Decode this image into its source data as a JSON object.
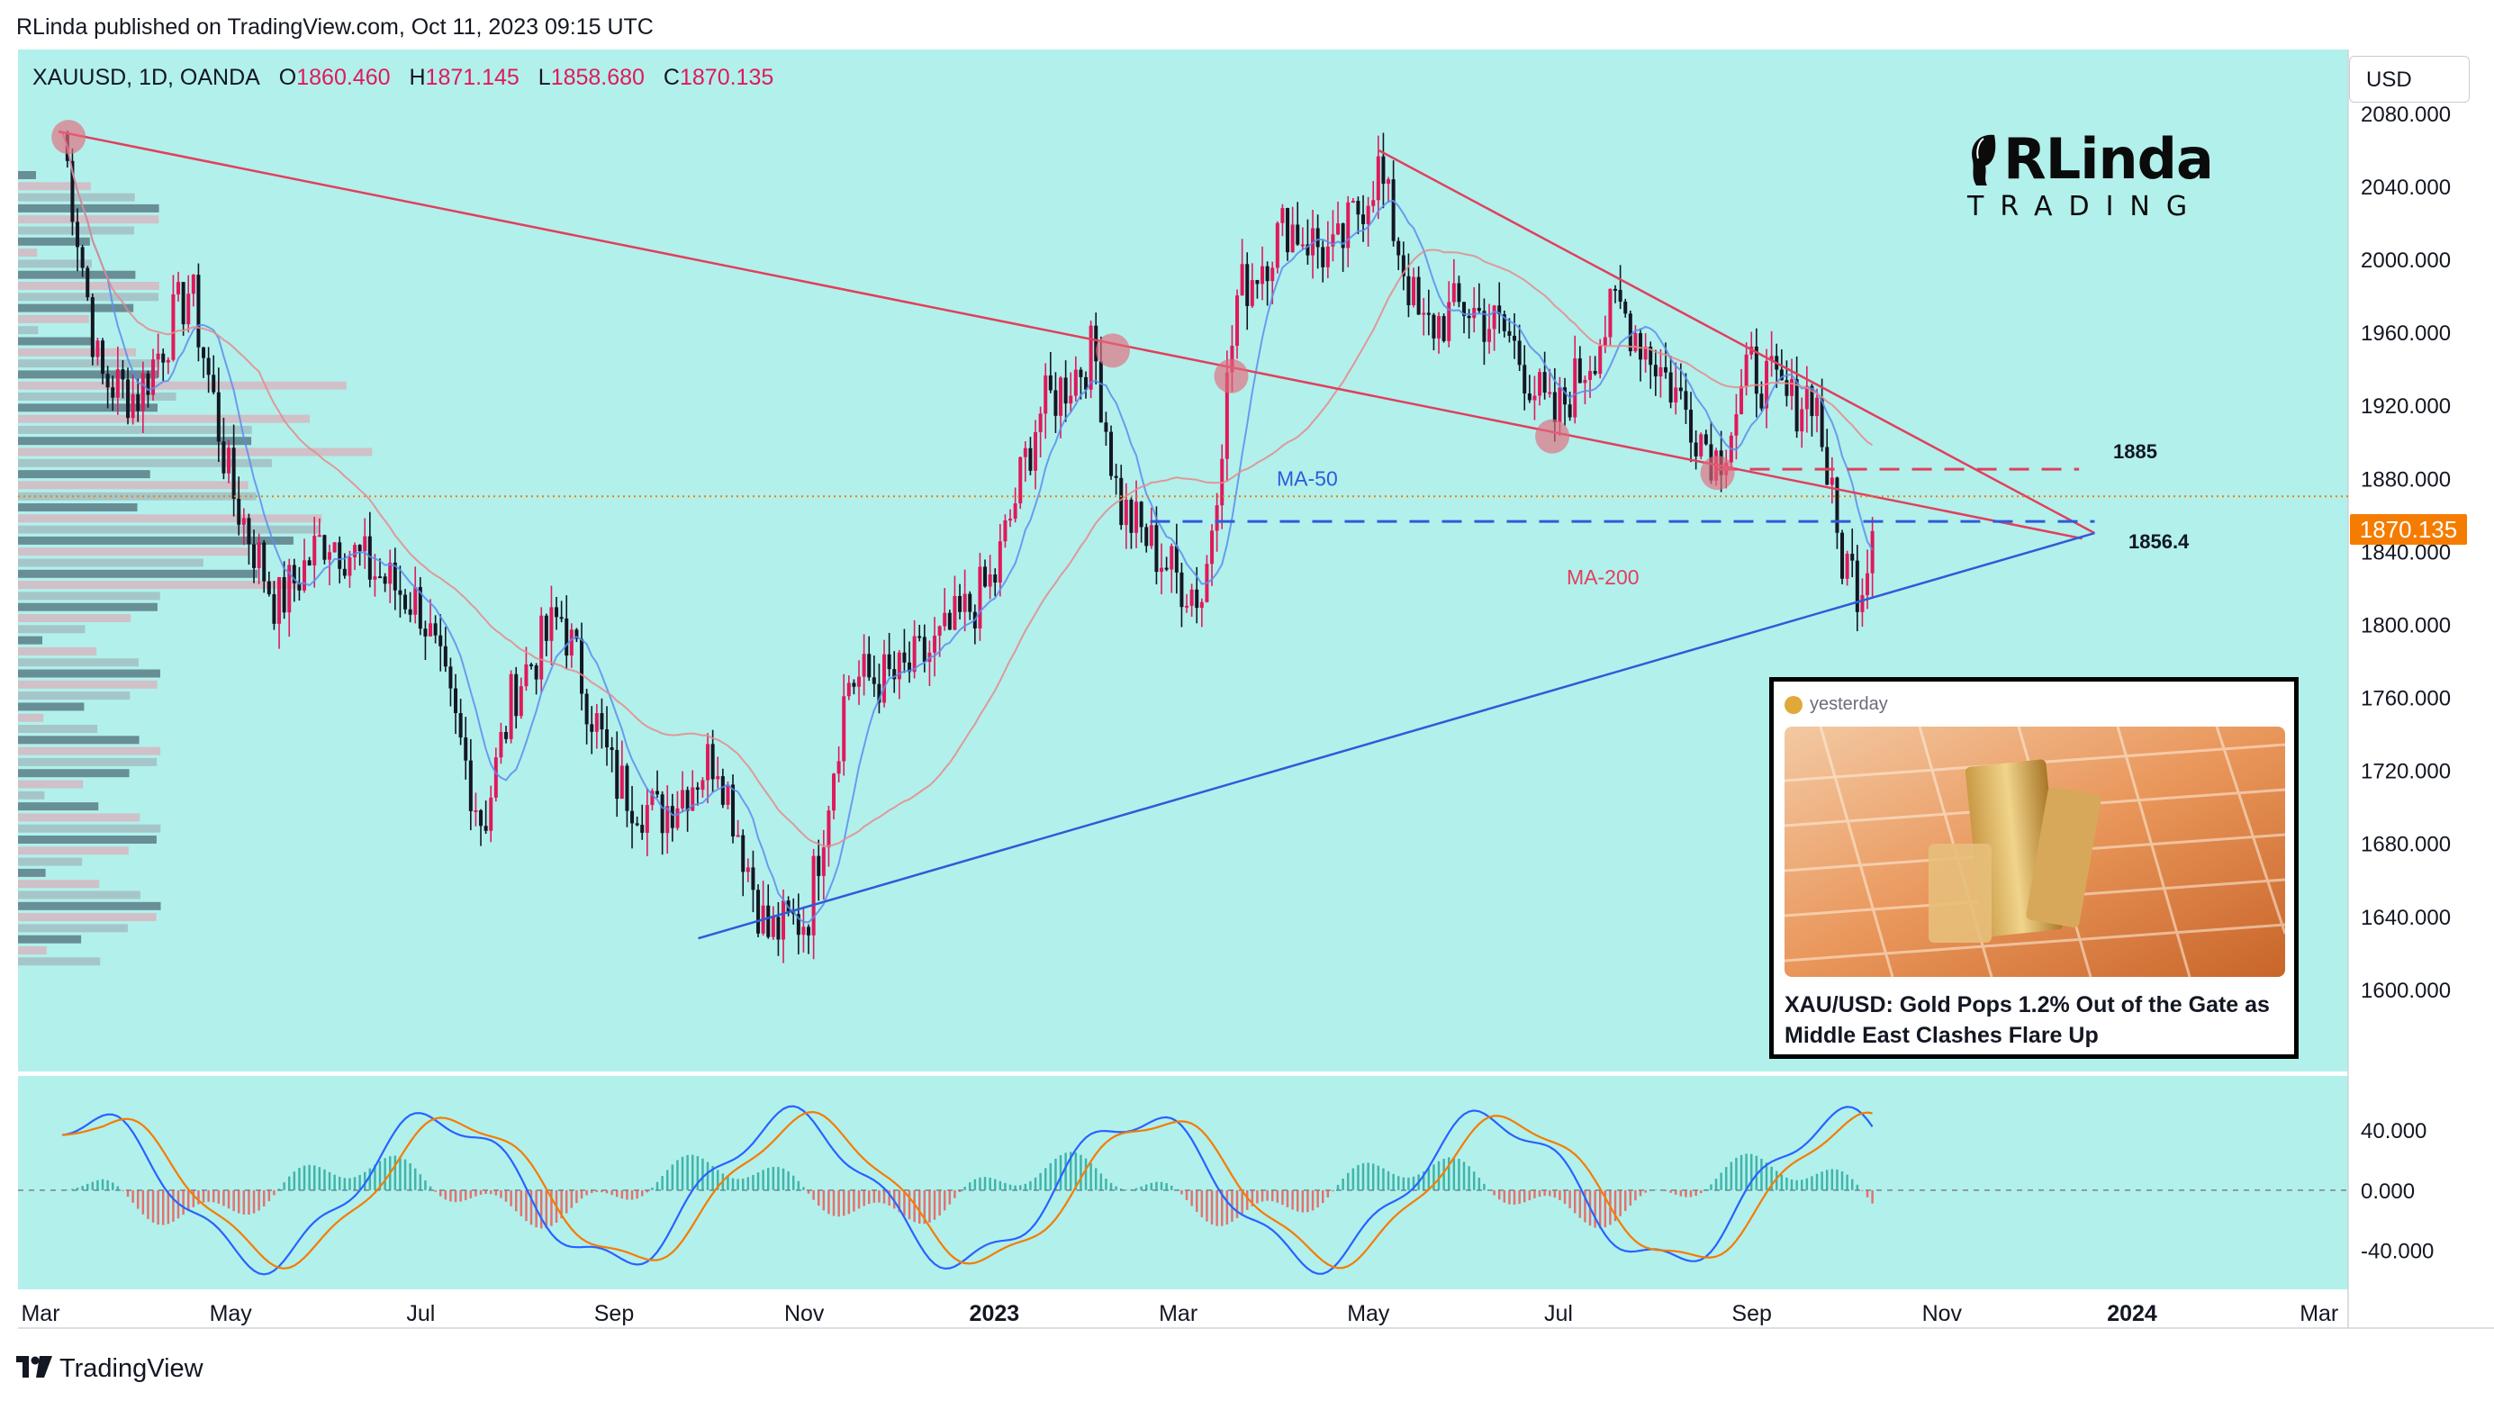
{
  "header": {
    "published": "RLinda published on TradingView.com, Oct 11, 2023 09:15 UTC"
  },
  "symbol_bar": {
    "symbol": "XAUUSD, 1D, OANDA",
    "o_label": "O",
    "o_value": "1860.460",
    "h_label": "H",
    "h_value": "1871.145",
    "l_label": "L",
    "l_value": "1858.680",
    "c_label": "C",
    "c_value": "1870.135"
  },
  "currency_button": "USD",
  "brand": {
    "main": "RLinda",
    "sub": "TRADING"
  },
  "colors": {
    "bg": "#b2f0ec",
    "up": "#e0195a",
    "down": "#131722",
    "ma50": "#5b8def",
    "ma200": "#e68a8a",
    "triangle": "#e0405c",
    "support": "#2f5bd8",
    "price_tag": "#f57c00"
  },
  "footer": {
    "brand": "TradingView"
  },
  "news": {
    "time": "yesterday",
    "title": "XAU/USD: Gold Pops 1.2% Out of the Gate as Middle East Clashes Flare Up"
  },
  "chart_data": [
    {
      "type": "candlestick",
      "y_axis": {
        "ticks": [
          "2080.000",
          "2040.000",
          "2000.000",
          "1960.000",
          "1920.000",
          "1880.000",
          "1840.000",
          "1800.000",
          "1760.000",
          "1720.000",
          "1680.000",
          "1640.000",
          "1600.000"
        ],
        "range": [
          1560,
          2110
        ]
      },
      "x_axis": {
        "ticks": [
          "Mar",
          "May",
          "Jul",
          "Sep",
          "Nov",
          "2023",
          "Mar",
          "May",
          "Jul",
          "Sep",
          "Nov",
          "2024",
          "Mar"
        ]
      },
      "last_price": "1870.135",
      "levels": [
        {
          "label": "1885",
          "value": 1885,
          "style": "dashed",
          "color": "red"
        },
        {
          "label": "1856.4",
          "value": 1856.4,
          "style": "dashed",
          "color": "blue"
        }
      ],
      "indicators": [
        {
          "label": "MA-50"
        },
        {
          "label": "MA-200"
        }
      ],
      "path": [
        [
          "2022-03-08",
          2070
        ],
        [
          "2022-03-20",
          1935
        ],
        [
          "2022-04-01",
          1925
        ],
        [
          "2022-04-18",
          1985
        ],
        [
          "2022-05-01",
          1875
        ],
        [
          "2022-05-16",
          1810
        ],
        [
          "2022-06-01",
          1850
        ],
        [
          "2022-06-15",
          1830
        ],
        [
          "2022-07-01",
          1810
        ],
        [
          "2022-07-21",
          1690
        ],
        [
          "2022-07-31",
          1765
        ],
        [
          "2022-08-15",
          1805
        ],
        [
          "2022-09-01",
          1715
        ],
        [
          "2022-09-15",
          1695
        ],
        [
          "2022-10-04",
          1730
        ],
        [
          "2022-10-20",
          1630
        ],
        [
          "2022-11-02",
          1640
        ],
        [
          "2022-11-15",
          1770
        ],
        [
          "2022-12-01",
          1770
        ],
        [
          "2022-12-15",
          1790
        ],
        [
          "2023-01-01",
          1825
        ],
        [
          "2023-01-15",
          1915
        ],
        [
          "2023-02-02",
          1950
        ],
        [
          "2023-02-10",
          1865
        ],
        [
          "2023-03-01",
          1825
        ],
        [
          "2023-03-09",
          1815
        ],
        [
          "2023-03-20",
          1980
        ],
        [
          "2023-04-05",
          2020
        ],
        [
          "2023-04-20",
          2000
        ],
        [
          "2023-05-04",
          2050
        ],
        [
          "2023-05-18",
          1960
        ],
        [
          "2023-06-01",
          1975
        ],
        [
          "2023-06-15",
          1958
        ],
        [
          "2023-06-29",
          1910
        ],
        [
          "2023-07-20",
          1975
        ],
        [
          "2023-08-01",
          1945
        ],
        [
          "2023-08-21",
          1890
        ],
        [
          "2023-09-01",
          1940
        ],
        [
          "2023-09-14",
          1920
        ],
        [
          "2023-09-21",
          1930
        ],
        [
          "2023-09-29",
          1840
        ],
        [
          "2023-10-06",
          1820
        ],
        [
          "2023-10-11",
          1870
        ]
      ]
    },
    {
      "type": "line",
      "name": "MACD",
      "y_axis": {
        "ticks": [
          "40.000",
          "0.000",
          "-40.000"
        ],
        "range": [
          -60,
          70
        ]
      },
      "series": [
        {
          "values": []
        },
        {
          "values": []
        }
      ]
    }
  ]
}
